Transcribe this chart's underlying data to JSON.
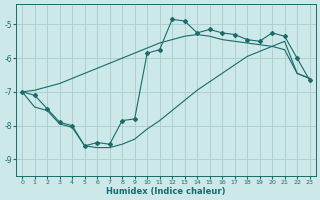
{
  "xlabel": "Humidex (Indice chaleur)",
  "bg_color": "#cce8e8",
  "line_color": "#1a6b6b",
  "grid_color": "#aacccc",
  "xlim": [
    -0.5,
    23.5
  ],
  "ylim": [
    -9.5,
    -4.4
  ],
  "yticks": [
    -9,
    -8,
    -7,
    -6,
    -5
  ],
  "xticks": [
    0,
    1,
    2,
    3,
    4,
    5,
    6,
    7,
    8,
    9,
    10,
    11,
    12,
    13,
    14,
    15,
    16,
    17,
    18,
    19,
    20,
    21,
    22,
    23
  ],
  "hours": [
    0,
    1,
    2,
    3,
    4,
    5,
    6,
    7,
    8,
    9,
    10,
    11,
    12,
    13,
    14,
    15,
    16,
    17,
    18,
    19,
    20,
    21,
    22,
    23
  ],
  "line_main": [
    -7.0,
    -7.1,
    -7.5,
    -7.9,
    -8.0,
    -8.6,
    -8.5,
    -8.55,
    -7.85,
    -7.8,
    -5.85,
    -5.75,
    -4.85,
    -4.9,
    -5.25,
    -5.15,
    -5.25,
    -5.3,
    -5.45,
    -5.5,
    -5.25,
    -5.35,
    -6.0,
    -6.65
  ],
  "line_main_markers": [
    0,
    1,
    2,
    3,
    4,
    5,
    6,
    7,
    8,
    9,
    10,
    11,
    12,
    13,
    14,
    15,
    16,
    17,
    18,
    19,
    20,
    21,
    22,
    23
  ],
  "line_upper": [
    -7.0,
    -6.95,
    -6.85,
    -6.75,
    -6.6,
    -6.45,
    -6.3,
    -6.15,
    -6.0,
    -5.85,
    -5.7,
    -5.55,
    -5.45,
    -5.35,
    -5.3,
    -5.35,
    -5.45,
    -5.5,
    -5.55,
    -5.6,
    -5.65,
    -5.75,
    -6.45,
    -6.6
  ],
  "line_lower": [
    -7.0,
    -7.45,
    -7.55,
    -7.95,
    -8.05,
    -8.6,
    -8.65,
    -8.65,
    -8.55,
    -8.4,
    -8.1,
    -7.85,
    -7.55,
    -7.25,
    -6.95,
    -6.7,
    -6.45,
    -6.2,
    -5.95,
    -5.8,
    -5.65,
    -5.5,
    -6.45,
    -6.6
  ]
}
